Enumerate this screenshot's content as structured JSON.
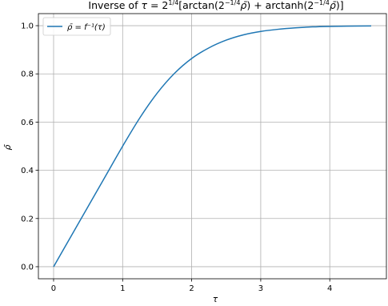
{
  "chart_data": {
    "type": "line",
    "title": {
      "prefix": "Inverse of ",
      "tau": "τ",
      "eq": " = 2",
      "exp_quarter": "1/4",
      "open": "[arctan(2",
      "exp_neg_quarter": "−1/4",
      "rho1": "ρ̄",
      "plus": ") + arctanh(2",
      "rho2": "ρ̄",
      "close": ")]"
    },
    "xlabel": "τ",
    "ylabel": "ρ̄",
    "xlim": [
      -0.22,
      4.82
    ],
    "ylim": [
      -0.05,
      1.05
    ],
    "x_ticks": [
      0,
      1,
      2,
      3,
      4
    ],
    "x_tick_labels": [
      "0",
      "1",
      "2",
      "3",
      "4"
    ],
    "y_ticks": [
      0.0,
      0.2,
      0.4,
      0.6,
      0.8,
      1.0
    ],
    "y_tick_labels": [
      "0.0",
      "0.2",
      "0.4",
      "0.6",
      "0.8",
      "1.0"
    ],
    "grid": true,
    "legend_position": "top-left",
    "series": [
      {
        "name": "ρ̄ = f⁻¹(τ)",
        "color": "#1f77b4",
        "x": [
          0.0,
          0.25,
          0.5,
          0.75,
          1.0,
          1.25,
          1.5,
          1.75,
          2.0,
          2.25,
          2.5,
          2.75,
          3.0,
          3.25,
          3.5,
          3.75,
          4.0,
          4.25,
          4.6
        ],
        "y": [
          0.0,
          0.125,
          0.25,
          0.375,
          0.5,
          0.618,
          0.72,
          0.802,
          0.864,
          0.908,
          0.94,
          0.962,
          0.976,
          0.985,
          0.991,
          0.995,
          0.997,
          0.998,
          0.999
        ]
      }
    ]
  }
}
